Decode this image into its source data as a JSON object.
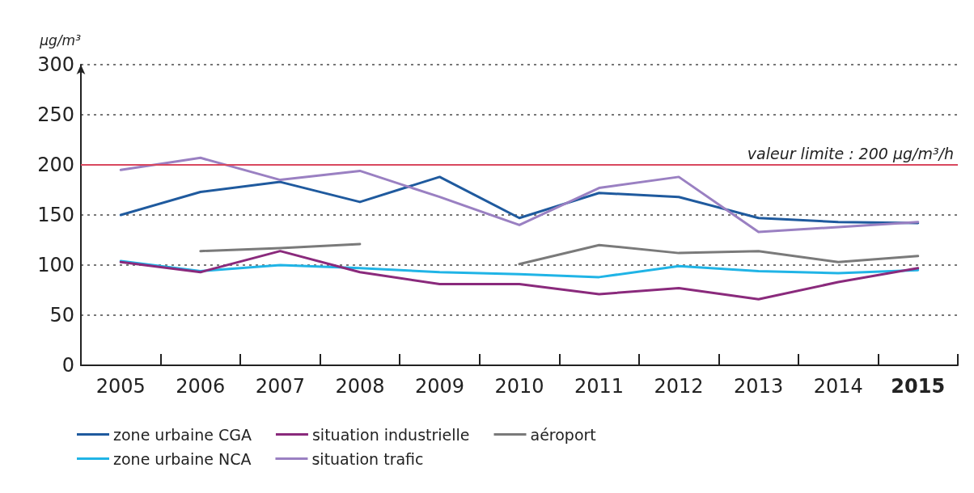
{
  "chart_data": {
    "type": "line",
    "ylabel": "µg/m³",
    "categories": [
      "2005",
      "2006",
      "2007",
      "2008",
      "2009",
      "2010",
      "2011",
      "2012",
      "2013",
      "2014",
      "2015"
    ],
    "series": [
      {
        "name": "zone urbaine CGA",
        "color": "#1f5a9e",
        "values": [
          150,
          173,
          183,
          163,
          188,
          147,
          172,
          168,
          147,
          143,
          142
        ]
      },
      {
        "name": "zone urbaine NCA",
        "color": "#20b4e6",
        "values": [
          104,
          94,
          100,
          97,
          93,
          91,
          88,
          99,
          94,
          92,
          95
        ]
      },
      {
        "name": "situation industrielle",
        "color": "#8a2a7c",
        "values": [
          103,
          93,
          114,
          93,
          81,
          81,
          71,
          77,
          66,
          83,
          97
        ]
      },
      {
        "name": "situation trafic",
        "color": "#9a80c2",
        "values": [
          195,
          207,
          185,
          194,
          168,
          140,
          177,
          188,
          133,
          138,
          143
        ]
      },
      {
        "name": "aéroport",
        "color": "#7a7a7a",
        "values": [
          null,
          114,
          117,
          121,
          null,
          101,
          120,
          112,
          114,
          103,
          109
        ]
      }
    ],
    "ylim": [
      0,
      300
    ],
    "yticks": [
      0,
      50,
      100,
      150,
      200,
      250,
      300
    ],
    "ref_lines": [
      {
        "axis": "y",
        "value": 200,
        "label": "valeur limite : 200 µg/m³/h",
        "color": "#d9485f"
      }
    ],
    "grid": "y",
    "legend": "bottom",
    "marker": "none",
    "line_style": "solid"
  }
}
